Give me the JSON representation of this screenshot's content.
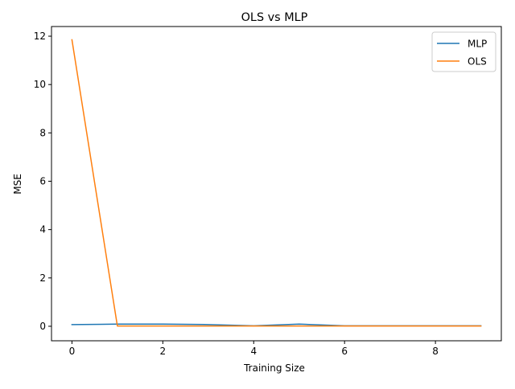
{
  "chart_data": {
    "type": "line",
    "title": "OLS vs MLP",
    "xlabel": "Training Size",
    "ylabel": "MSE",
    "x": [
      0,
      1,
      2,
      3,
      4,
      5,
      6,
      7,
      8,
      9
    ],
    "xlim": [
      -0.45,
      9.45
    ],
    "ylim": [
      -0.6,
      12.4
    ],
    "xticks": [
      0,
      2,
      4,
      6,
      8
    ],
    "yticks": [
      0,
      2,
      4,
      6,
      8,
      10,
      12
    ],
    "grid": false,
    "legend_position": "top-right",
    "series": [
      {
        "name": "MLP",
        "color": "#1f77b4",
        "values": [
          0.07,
          0.09,
          0.09,
          0.07,
          0.02,
          0.09,
          0.02,
          0.02,
          0.02,
          0.02
        ]
      },
      {
        "name": "OLS",
        "color": "#ff7f0e",
        "values": [
          11.85,
          0.01,
          0.01,
          0.01,
          0.01,
          0.01,
          0.01,
          0.01,
          0.01,
          0.01
        ]
      }
    ]
  }
}
